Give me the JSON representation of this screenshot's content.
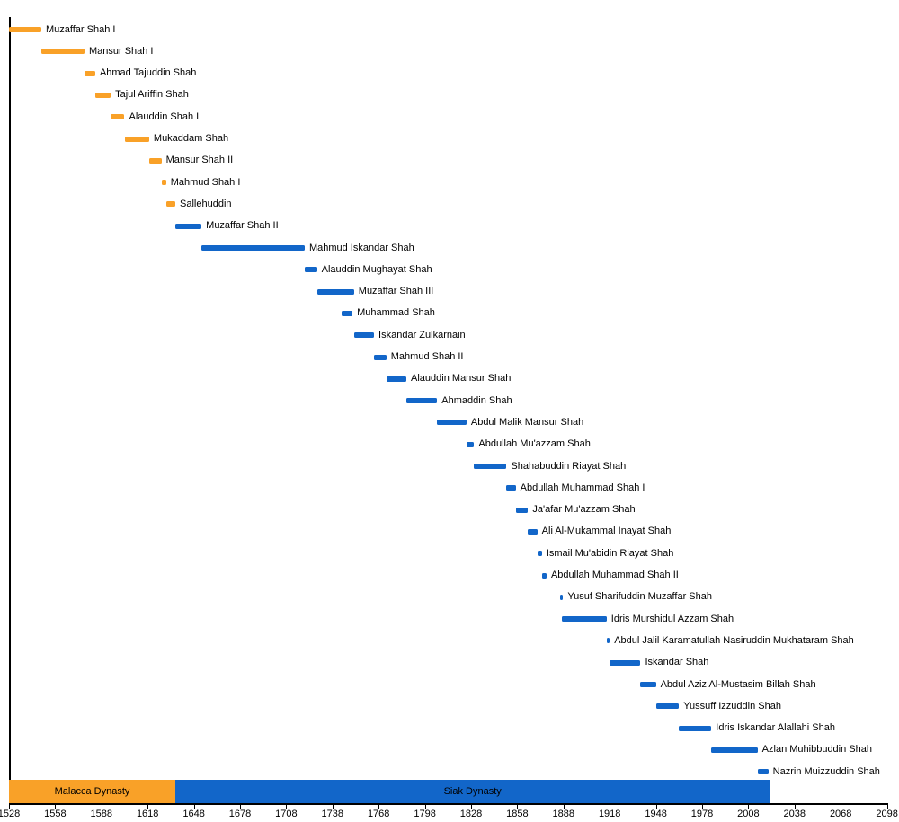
{
  "chart_data": {
    "type": "bar",
    "variant": "timeline-gantt",
    "orientation": "horizontal",
    "grid": false,
    "legend": "none",
    "colors": {
      "malacca": "#F9A128",
      "siak": "#1266C9",
      "axis": "#000000",
      "text": "#000000",
      "background": "#FFFFFF"
    },
    "x_axis": {
      "min": 1528,
      "max": 2098,
      "tick_interval": 30,
      "ticks": [
        1528,
        1558,
        1588,
        1618,
        1648,
        1678,
        1708,
        1738,
        1768,
        1798,
        1828,
        1858,
        1888,
        1918,
        1948,
        1978,
        2008,
        2038,
        2068,
        2098
      ]
    },
    "rulers": [
      {
        "name": "Muzaffar Shah I",
        "start": 1528,
        "end": 1549,
        "dynasty": "malacca"
      },
      {
        "name": "Mansur Shah I",
        "start": 1549,
        "end": 1577,
        "dynasty": "malacca"
      },
      {
        "name": "Ahmad Tajuddin Shah",
        "start": 1577,
        "end": 1584,
        "dynasty": "malacca"
      },
      {
        "name": "Tajul Ariffin Shah",
        "start": 1584,
        "end": 1594,
        "dynasty": "malacca"
      },
      {
        "name": "Alauddin Shah I",
        "start": 1594,
        "end": 1603,
        "dynasty": "malacca"
      },
      {
        "name": "Mukaddam Shah",
        "start": 1603,
        "end": 1619,
        "dynasty": "malacca"
      },
      {
        "name": "Mansur Shah II",
        "start": 1619,
        "end": 1627,
        "dynasty": "malacca"
      },
      {
        "name": "Mahmud Shah I",
        "start": 1627,
        "end": 1630,
        "dynasty": "malacca"
      },
      {
        "name": "Sallehuddin",
        "start": 1630,
        "end": 1636,
        "dynasty": "malacca"
      },
      {
        "name": "Muzaffar Shah II",
        "start": 1636,
        "end": 1653,
        "dynasty": "siak"
      },
      {
        "name": "Mahmud Iskandar Shah",
        "start": 1653,
        "end": 1720,
        "dynasty": "siak"
      },
      {
        "name": "Alauddin Mughayat Shah",
        "start": 1720,
        "end": 1728,
        "dynasty": "siak"
      },
      {
        "name": "Muzaffar Shah III",
        "start": 1728,
        "end": 1752,
        "dynasty": "siak"
      },
      {
        "name": "Muhammad Shah",
        "start": 1744,
        "end": 1751,
        "dynasty": "siak"
      },
      {
        "name": "Iskandar Zulkarnain",
        "start": 1752,
        "end": 1765,
        "dynasty": "siak"
      },
      {
        "name": "Mahmud Shah II",
        "start": 1765,
        "end": 1773,
        "dynasty": "siak"
      },
      {
        "name": "Alauddin Mansur Shah",
        "start": 1773,
        "end": 1786,
        "dynasty": "siak"
      },
      {
        "name": "Ahmaddin Shah",
        "start": 1786,
        "end": 1806,
        "dynasty": "siak"
      },
      {
        "name": "Abdul Malik Mansur Shah",
        "start": 1806,
        "end": 1825,
        "dynasty": "siak"
      },
      {
        "name": "Abdullah Mu'azzam Shah",
        "start": 1825,
        "end": 1830,
        "dynasty": "siak"
      },
      {
        "name": "Shahabuddin Riayat Shah",
        "start": 1830,
        "end": 1851,
        "dynasty": "siak"
      },
      {
        "name": "Abdullah Muhammad Shah I",
        "start": 1851,
        "end": 1857,
        "dynasty": "siak"
      },
      {
        "name": "Ja'afar Mu'azzam Shah",
        "start": 1857,
        "end": 1865,
        "dynasty": "siak"
      },
      {
        "name": "Ali Al-Mukammal Inayat Shah",
        "start": 1865,
        "end": 1871,
        "dynasty": "siak"
      },
      {
        "name": "Ismail Mu'abidin Riayat Shah",
        "start": 1871,
        "end": 1874,
        "dynasty": "siak"
      },
      {
        "name": "Abdullah Muhammad Shah II",
        "start": 1874,
        "end": 1877,
        "dynasty": "siak"
      },
      {
        "name": "Yusuf Sharifuddin Muzaffar Shah",
        "start": 1886,
        "end": 1887,
        "dynasty": "siak"
      },
      {
        "name": "Idris Murshidul Azzam Shah",
        "start": 1887,
        "end": 1916,
        "dynasty": "siak"
      },
      {
        "name": "Abdul Jalil Karamatullah Nasiruddin Mukhataram Shah",
        "start": 1916,
        "end": 1918,
        "dynasty": "siak"
      },
      {
        "name": "Iskandar Shah",
        "start": 1918,
        "end": 1938,
        "dynasty": "siak"
      },
      {
        "name": "Abdul Aziz Al-Mustasim Billah Shah",
        "start": 1938,
        "end": 1948,
        "dynasty": "siak"
      },
      {
        "name": "Yussuff Izzuddin Shah",
        "start": 1948,
        "end": 1963,
        "dynasty": "siak"
      },
      {
        "name": "Idris Iskandar Alallahi Shah",
        "start": 1963,
        "end": 1984,
        "dynasty": "siak"
      },
      {
        "name": "Azlan Muhibbuddin Shah",
        "start": 1984,
        "end": 2014,
        "dynasty": "siak"
      },
      {
        "name": "Nazrin Muizzuddin Shah",
        "start": 2014,
        "end": 2021,
        "dynasty": "siak"
      }
    ],
    "dynasties": [
      {
        "label": "Malacca Dynasty",
        "start": 1528,
        "end": 1636,
        "color_key": "malacca"
      },
      {
        "label": "Siak Dynasty",
        "start": 1636,
        "end": 2022,
        "color_key": "siak"
      }
    ]
  }
}
